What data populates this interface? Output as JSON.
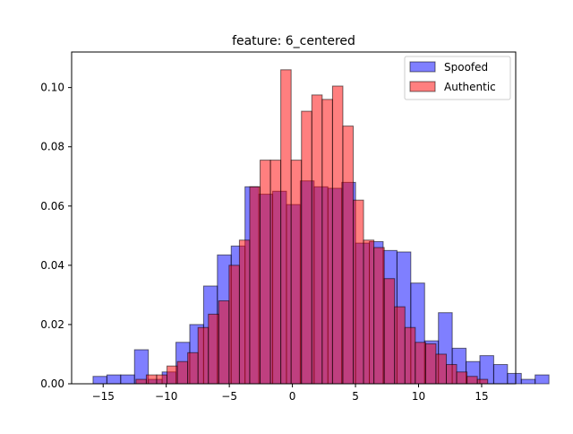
{
  "chart_data": {
    "type": "bar",
    "title": "feature: 6_centered",
    "xlabel": "",
    "ylabel": "",
    "xlim": [
      -17.5,
      17.7
    ],
    "ylim": [
      0,
      0.112
    ],
    "xticks": [
      -15,
      -10,
      -5,
      0,
      5,
      10,
      15
    ],
    "xtick_labels": [
      "−15",
      "−10",
      "−5",
      "0",
      "5",
      "10",
      "15"
    ],
    "yticks": [
      0.0,
      0.02,
      0.04,
      0.06,
      0.08,
      0.1
    ],
    "ytick_labels": [
      "0.00",
      "0.02",
      "0.04",
      "0.06",
      "0.08",
      "0.10"
    ],
    "grid": false,
    "legend_position": "top-right",
    "series": [
      {
        "name": "Spoofed",
        "color": "#0000ff",
        "alpha": 0.5,
        "bin_start": -15.8,
        "bin_width": 1.095,
        "values": [
          0.0025,
          0.003,
          0.003,
          0.0115,
          0.0015,
          0.004,
          0.014,
          0.02,
          0.033,
          0.0435,
          0.0465,
          0.0665,
          0.064,
          0.065,
          0.0605,
          0.0685,
          0.0665,
          0.066,
          0.068,
          0.0475,
          0.048,
          0.045,
          0.0445,
          0.034,
          0.0145,
          0.024,
          0.012,
          0.0075,
          0.0095,
          0.0065,
          0.0035,
          0.0015,
          0.003
        ]
      },
      {
        "name": "Authentic",
        "color": "#ff0000",
        "alpha": 0.5,
        "bin_start": -12.4,
        "bin_width": 0.82,
        "values": [
          0.0015,
          0.003,
          0.003,
          0.006,
          0.0075,
          0.0105,
          0.019,
          0.0235,
          0.028,
          0.04,
          0.0485,
          0.0665,
          0.0755,
          0.0755,
          0.106,
          0.0755,
          0.092,
          0.0975,
          0.096,
          0.1005,
          0.087,
          0.062,
          0.0485,
          0.046,
          0.0355,
          0.026,
          0.019,
          0.014,
          0.0135,
          0.01,
          0.0065,
          0.004,
          0.0025,
          0.0015
        ]
      }
    ]
  }
}
